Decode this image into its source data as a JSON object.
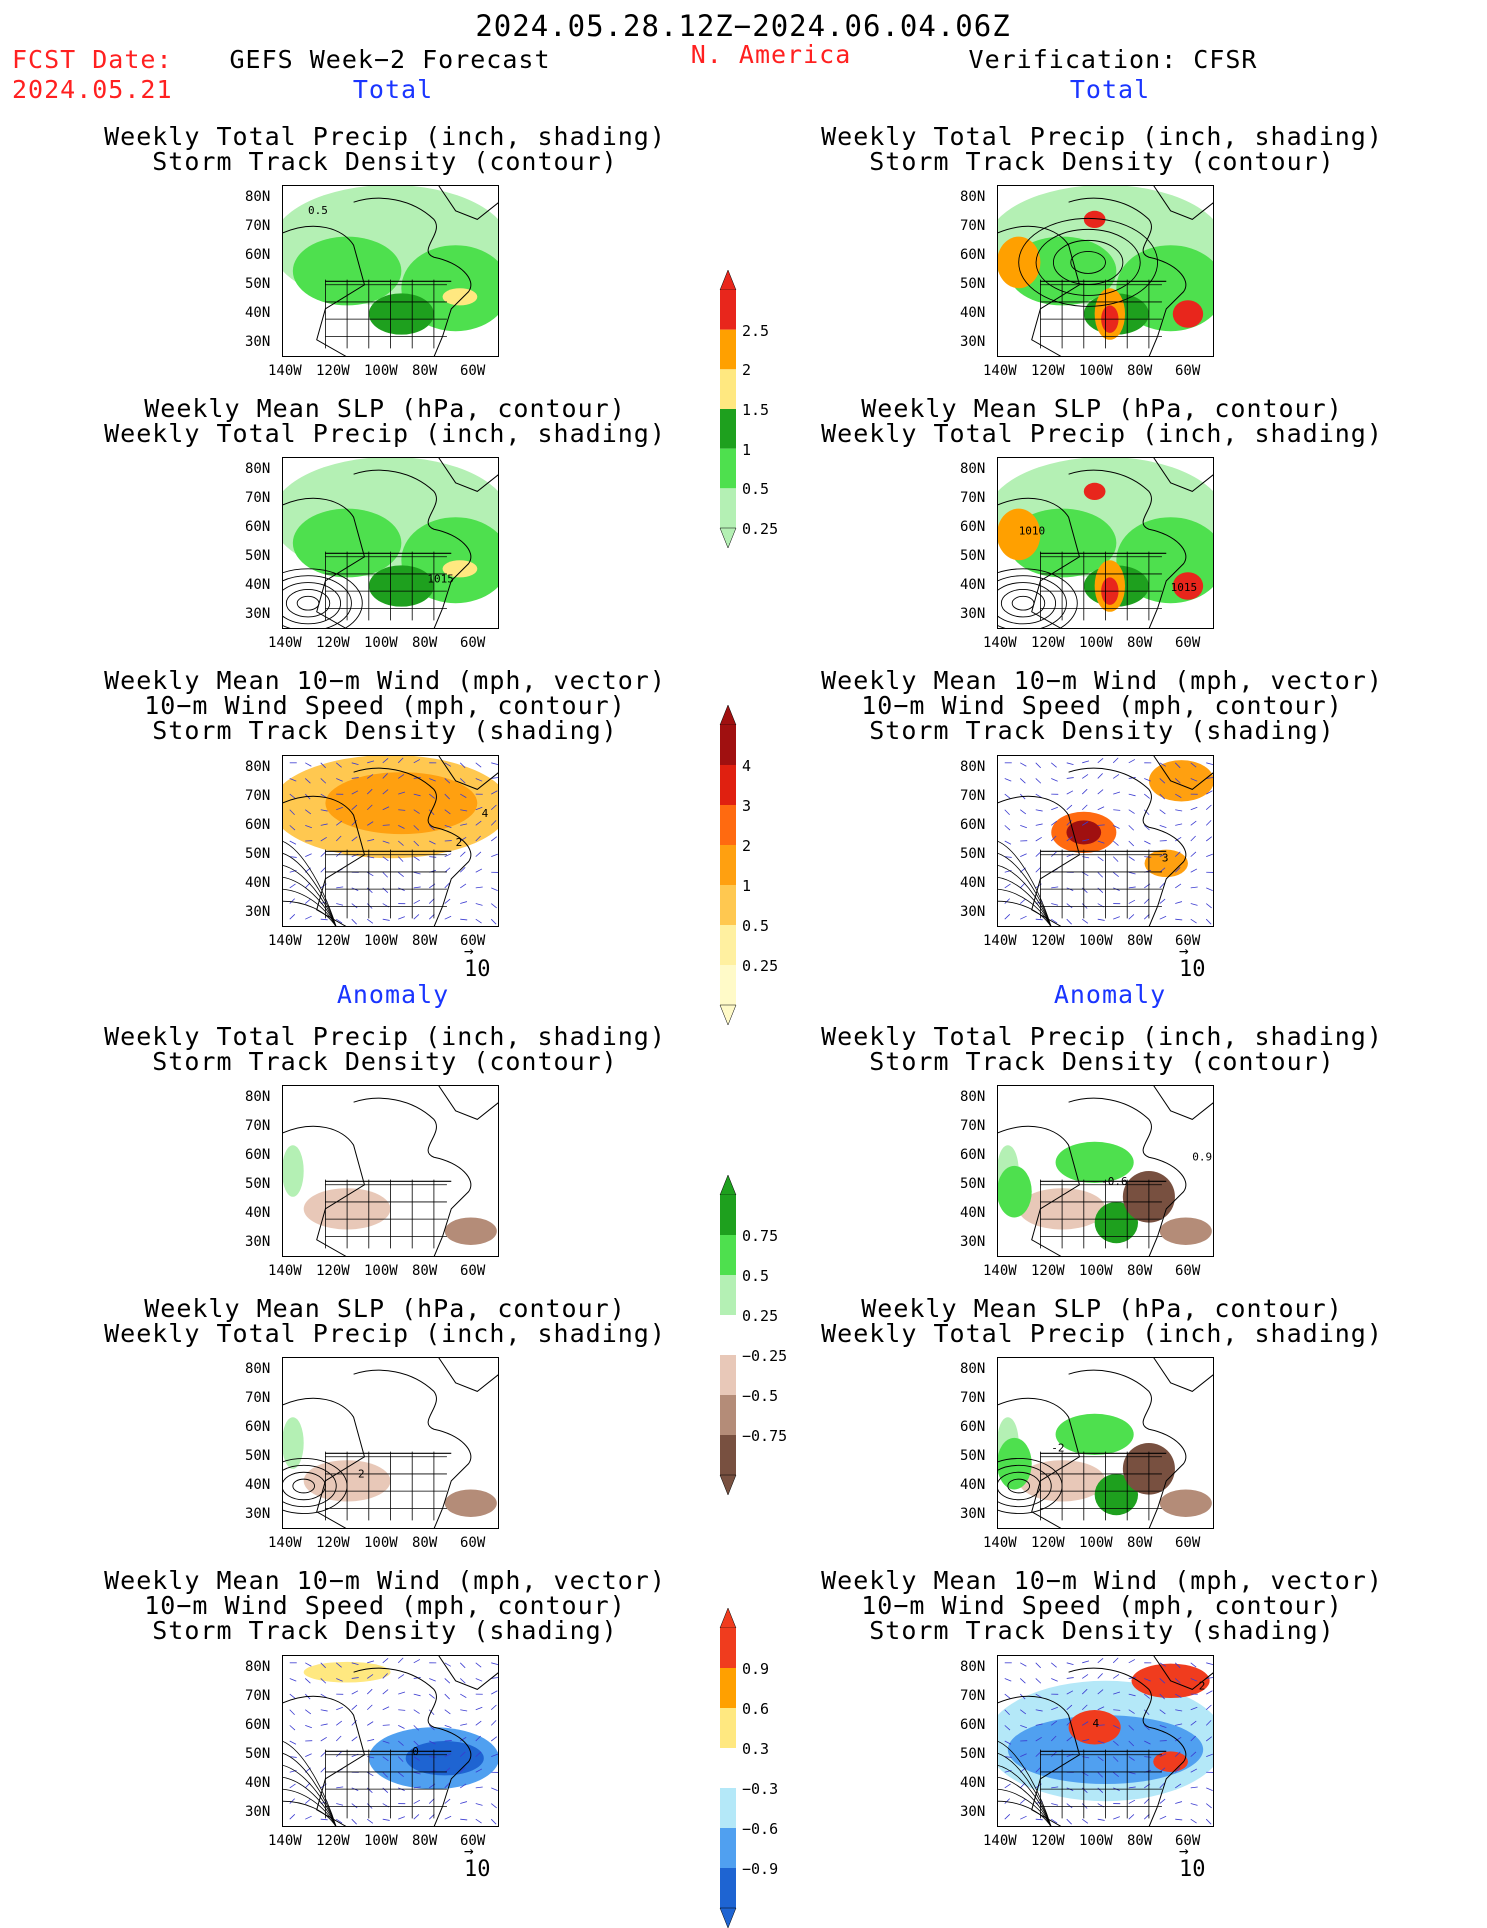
{
  "header": {
    "time_range": "2024.05.28.12Z−2024.06.04.06Z",
    "fcst_label": "FCST Date:",
    "fcst_date": "2024.05.21",
    "left_title": "GEFS Week−2 Forecast",
    "region": "N. America",
    "right_title": "Verification: CFSR"
  },
  "sections": {
    "total": "Total",
    "anomaly": "Anomaly"
  },
  "panel_titles": {
    "precip_track": [
      "Weekly Total Precip (inch, shading)",
      "Storm Track Density (contour)"
    ],
    "slp_precip": [
      "Weekly Mean SLP (hPa, contour)",
      "Weekly Total Precip (inch, shading)"
    ],
    "wind_track": [
      "Weekly Mean 10−m Wind (mph, vector)",
      "10−m Wind Speed (mph, contour)",
      "Storm Track Density (shading)"
    ]
  },
  "axes": {
    "lat": [
      "80N",
      "70N",
      "60N",
      "50N",
      "40N",
      "30N"
    ],
    "lon": [
      "140W",
      "120W",
      "100W",
      "80W",
      "60W"
    ]
  },
  "vector_ref": "10",
  "contour_labels": {
    "fc_total_track": "0.5",
    "fc_total_slp": "1015",
    "obs_total_slp_a": "1010",
    "obs_total_slp_b": "1015",
    "fc_total_wind_a": "4",
    "fc_total_wind_b": "2",
    "obs_total_wind": "3",
    "obs_anom_track_a": "-0.6",
    "obs_anom_track_b": "0.9",
    "fc_anom_slp": "2",
    "obs_anom_slp": "-2",
    "fc_anom_wind": "0",
    "obs_anom_wind_a": "4",
    "obs_anom_wind_b": "2"
  },
  "colorbars": {
    "precip_total": {
      "labels": [
        "2.5",
        "2",
        "1.5",
        "1",
        "0.5",
        "0.25"
      ],
      "colors": [
        "#e8261c",
        "#ffa000",
        "#ffe880",
        "#1ea01e",
        "#4ee04e",
        "#b4f0b4"
      ]
    },
    "track_total": {
      "labels": [
        "4",
        "3",
        "2",
        "1",
        "0.5",
        "0.25"
      ],
      "colors": [
        "#a01010",
        "#e02010",
        "#ff6a10",
        "#ffa010",
        "#ffc850",
        "#fff0a0",
        "#fffac8"
      ]
    },
    "precip_anom": {
      "labels": [
        "0.75",
        "0.5",
        "0.25",
        "−0.25",
        "−0.5",
        "−0.75"
      ],
      "colors": [
        "#1ea01e",
        "#4ee04e",
        "#b4f0b4",
        "#ffffff",
        "#e8c8b8",
        "#b48c78",
        "#785040"
      ]
    },
    "track_anom": {
      "labels": [
        "0.9",
        "0.6",
        "0.3",
        "−0.3",
        "−0.6",
        "−0.9"
      ],
      "colors": [
        "#f03c1e",
        "#ffa000",
        "#ffe880",
        "#ffffff",
        "#b4e8f8",
        "#50a0f0",
        "#1e64d2"
      ]
    }
  }
}
